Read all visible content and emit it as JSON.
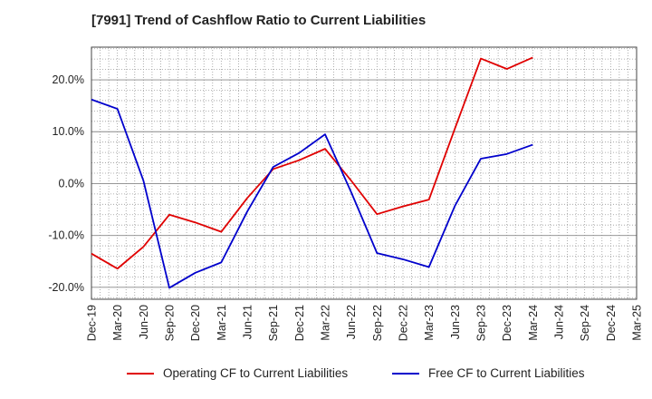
{
  "title": "[7991]  Trend of Cashflow Ratio to Current Liabilities",
  "chart_data": {
    "type": "line",
    "title": "[7991]  Trend of Cashflow Ratio to Current Liabilities",
    "xlabel": "",
    "ylabel": "",
    "categories": [
      "Dec-19",
      "Mar-20",
      "Jun-20",
      "Sep-20",
      "Dec-20",
      "Mar-21",
      "Jun-21",
      "Sep-21",
      "Dec-21",
      "Mar-22",
      "Jun-22",
      "Sep-22",
      "Dec-22",
      "Mar-23",
      "Jun-23",
      "Sep-23",
      "Dec-23",
      "Mar-24",
      "Jun-24",
      "Sep-24",
      "Dec-24",
      "Mar-25"
    ],
    "y_ticks": [
      20,
      10,
      0,
      -10,
      -20
    ],
    "y_tick_labels": [
      "20.0%",
      "10.0%",
      "0.0%",
      "-10.0%",
      "-20.0%"
    ],
    "ylim": [
      -22.3,
      26.3
    ],
    "grid": true,
    "legend_position": "bottom",
    "series": [
      {
        "name": "Operating CF to Current Liabilities",
        "color": "#e00000",
        "values": [
          -13.5,
          -16.4,
          -12.2,
          -6.0,
          -7.5,
          -9.3,
          -2.8,
          2.8,
          4.5,
          6.7,
          0.6,
          -5.9,
          -4.4,
          -3.1,
          10.6,
          24.1,
          22.1,
          24.3,
          null,
          null,
          null,
          null
        ]
      },
      {
        "name": "Free CF to Current Liabilities",
        "color": "#0000cc",
        "values": [
          16.2,
          14.4,
          0.6,
          -20.1,
          -17.2,
          -15.2,
          -5.4,
          3.2,
          5.9,
          9.5,
          -1.6,
          -13.4,
          -14.6,
          -16.1,
          -4.3,
          4.8,
          5.7,
          7.5,
          null,
          null,
          null,
          null
        ]
      }
    ]
  }
}
